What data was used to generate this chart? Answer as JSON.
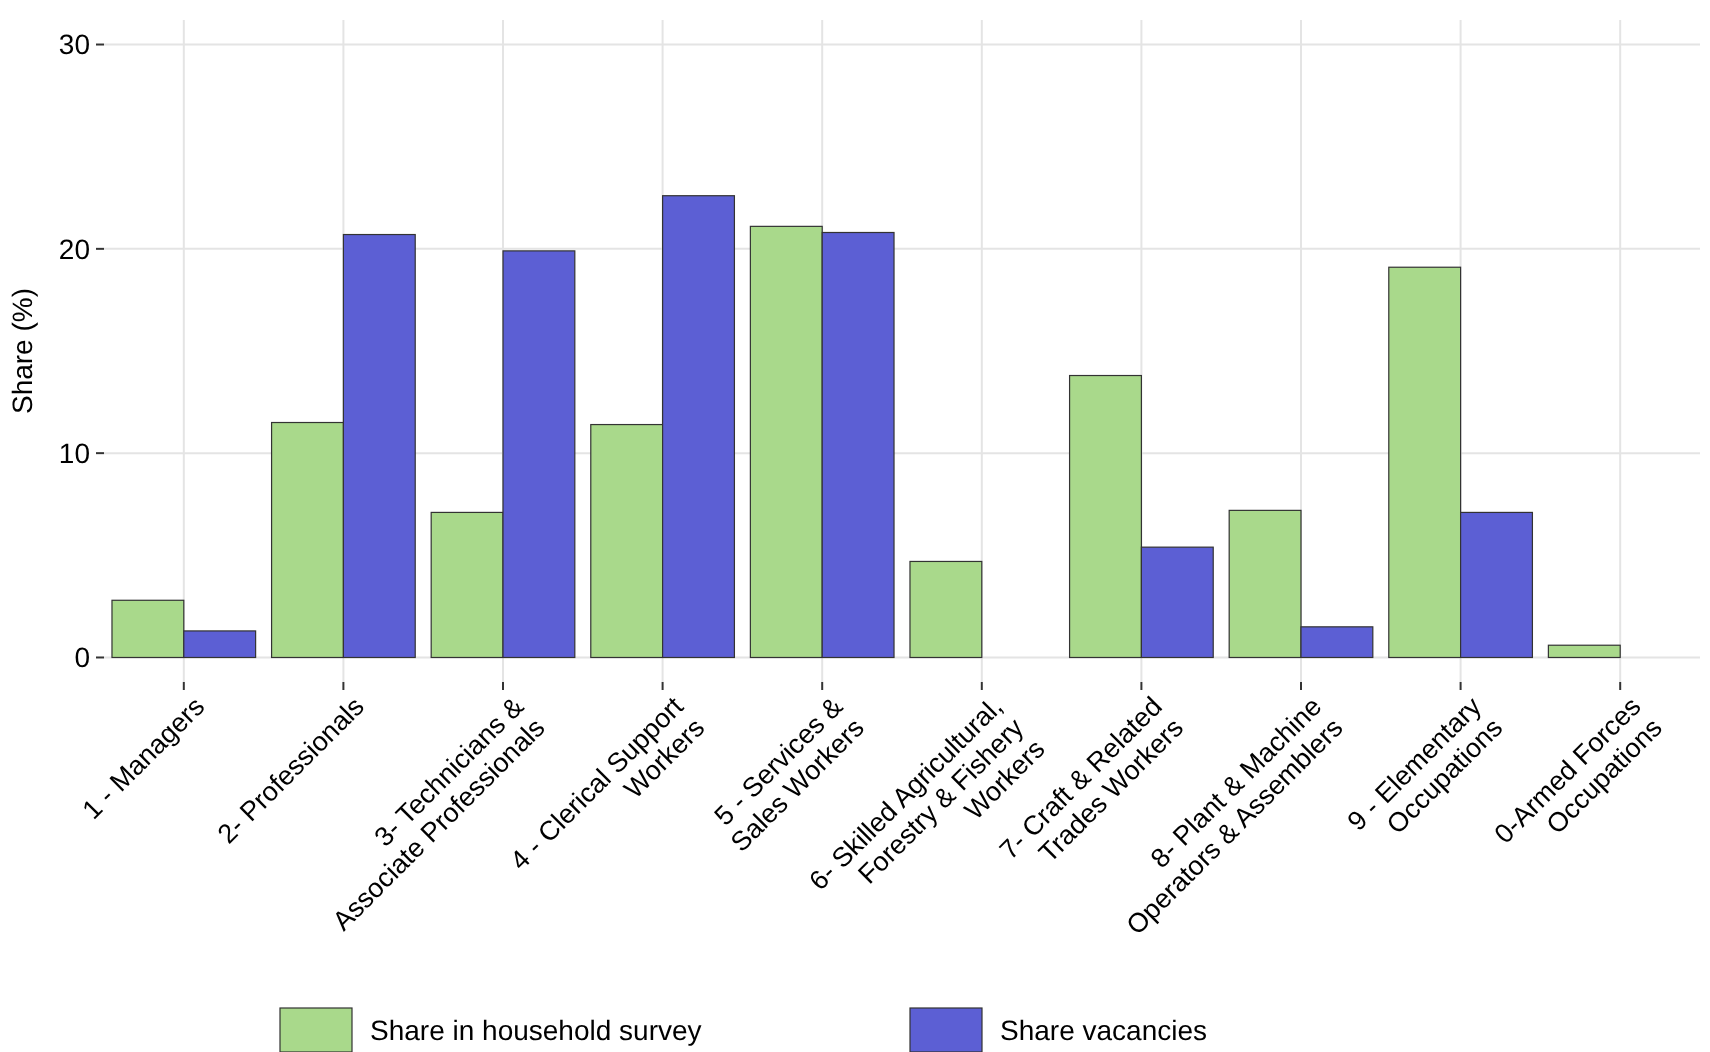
{
  "chart_data": {
    "type": "bar",
    "ylabel": "Share (%)",
    "categories": [
      "1 - Managers",
      "2- Professionals",
      "3- Technicians &\nAssociate Professionals",
      "4 - Clerical Support\nWorkers",
      "5 - Services &\nSales Workers",
      "6- Skilled Agricultural,\nForestry & Fishery\nWorkers",
      "7- Craft & Related\nTrades Workers",
      "8- Plant & Machine\nOperators & Assemblers",
      "9 - Elementary\nOccupations",
      "0-Armed Forces\nOccupations"
    ],
    "series": [
      {
        "name": "Share in household survey",
        "color": "#a9d98b",
        "values": [
          2.8,
          11.5,
          7.1,
          11.4,
          21.1,
          4.7,
          13.8,
          7.2,
          19.1,
          0.6
        ]
      },
      {
        "name": "Share vacancies",
        "color": "#5c5fd4",
        "values": [
          1.3,
          20.7,
          19.9,
          22.6,
          20.8,
          0,
          5.4,
          1.5,
          7.1,
          0
        ]
      }
    ],
    "ylim": [
      -1.2,
      31.2
    ],
    "yticks": [
      0,
      10,
      20,
      30
    ],
    "grid": true,
    "legend": "bottom"
  }
}
